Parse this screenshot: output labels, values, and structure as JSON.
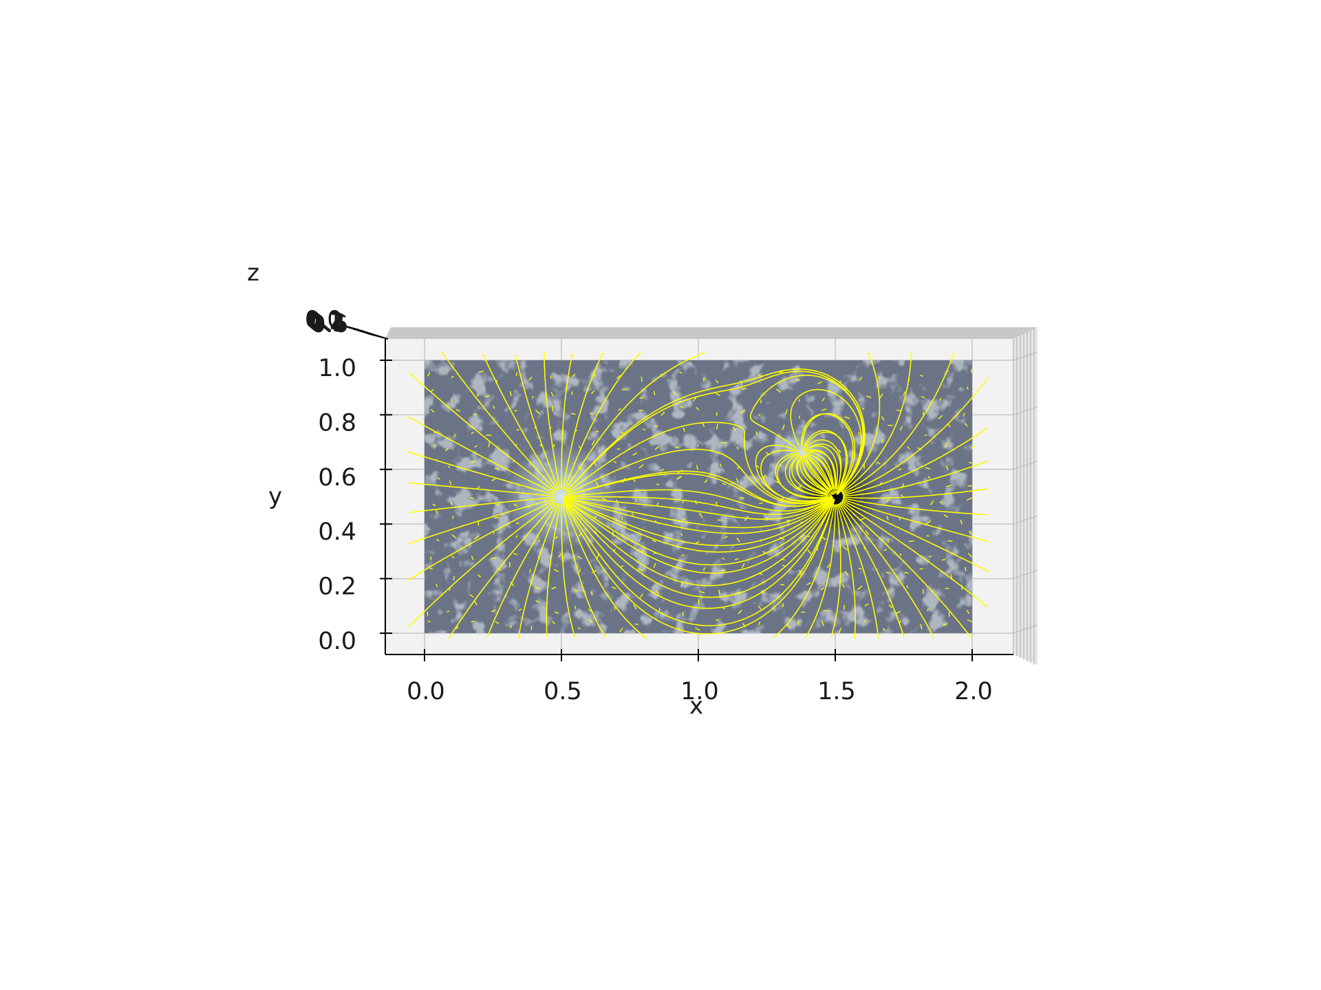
{
  "chart_data": {
    "type": "streamplot-3d",
    "view": "top-down",
    "xlabel": "x",
    "ylabel": "y",
    "zlabel": "z",
    "xlim": [
      0.0,
      2.0
    ],
    "ylim": [
      0.0,
      1.0
    ],
    "x_ticks": [
      "0.0",
      "0.5",
      "1.0",
      "1.5",
      "2.0"
    ],
    "y_ticks": [
      "0.0",
      "0.2",
      "0.4",
      "0.6",
      "0.8",
      "1.0"
    ],
    "z_ticks": [
      "0.0",
      "0.1",
      "0.2",
      "0.3",
      "0.4",
      "0.5",
      "0.6"
    ],
    "grid": true,
    "colormap": "bone",
    "streamline_color": "#ffff00",
    "pane_color": "#f2f2f2",
    "poles": [
      {
        "x": 0.5,
        "y": 0.5,
        "polarity": "positive",
        "appearance": "bright"
      },
      {
        "x": 1.5,
        "y": 0.5,
        "polarity": "negative",
        "appearance": "dark"
      },
      {
        "x": 1.38,
        "y": 0.66,
        "polarity": "positive",
        "appearance": "bright"
      }
    ]
  }
}
